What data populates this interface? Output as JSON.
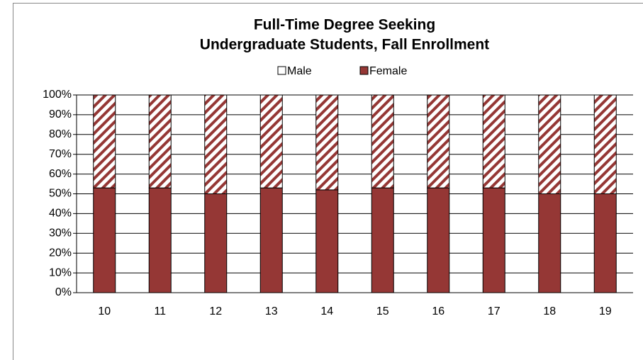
{
  "chart_data": {
    "type": "stacked_bar",
    "title": [
      "Full-Time Degree Seeking",
      "Undergraduate Students, Fall Enrollment"
    ],
    "categories": [
      "10",
      "11",
      "12",
      "13",
      "14",
      "15",
      "16",
      "17",
      "18",
      "19"
    ],
    "series": [
      {
        "name": "Female",
        "color": "#953735",
        "values": [
          53,
          53,
          50,
          53,
          52,
          53,
          53,
          53,
          50,
          50
        ]
      },
      {
        "name": "Male",
        "color": "#953735",
        "hatch": true,
        "values": [
          47,
          47,
          50,
          47,
          48,
          47,
          47,
          47,
          50,
          50
        ]
      }
    ],
    "legend_order": [
      "Male",
      "Female"
    ],
    "legend": "top",
    "ylim": [
      0,
      100
    ],
    "yticks": [
      {
        "value": 0,
        "label": "0%"
      },
      {
        "value": 10,
        "label": "10%"
      },
      {
        "value": 20,
        "label": "20%"
      },
      {
        "value": 30,
        "label": "30%"
      },
      {
        "value": 40,
        "label": "40%"
      },
      {
        "value": 50,
        "label": "50%"
      },
      {
        "value": 60,
        "label": "60%"
      },
      {
        "value": 70,
        "label": "70%"
      },
      {
        "value": 80,
        "label": "80%"
      },
      {
        "value": 90,
        "label": "90%"
      },
      {
        "value": 100,
        "label": "100%"
      }
    ],
    "grid": true
  }
}
